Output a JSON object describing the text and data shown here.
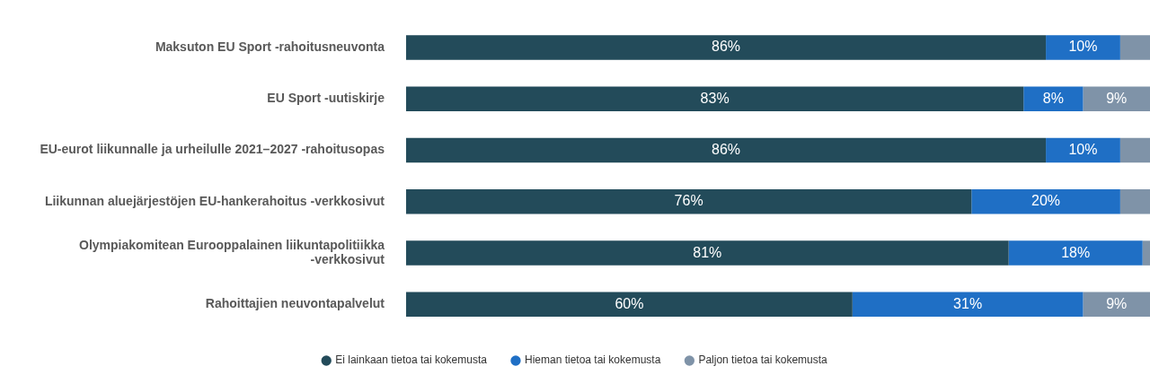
{
  "chart_data": {
    "type": "bar",
    "orientation": "horizontal",
    "stacked": true,
    "xlim": [
      0,
      100
    ],
    "tick_labels": "y",
    "legend": "bottom",
    "marker": "circle",
    "categories": [
      "Maksuton EU Sport -rahoitusneuvonta",
      "EU Sport -uutiskirje",
      "EU-eurot liikunnalle ja urheilulle 2021–2027 -rahoitusopas",
      "Liikunnan aluejärjestöjen EU-hankerahoitus -verkkosivut",
      "Olympiakomitean Eurooppalainen liikuntapolitiikka -verkkosivut",
      "Rahoittajien neuvontapalvelut"
    ],
    "series": [
      {
        "name": "Ei lainkaan tietoa tai kokemusta",
        "color": "#234b5a",
        "values": [
          86,
          83,
          86,
          76,
          81,
          60
        ],
        "value_labels": [
          "86%",
          "83%",
          "86%",
          "76%",
          "81%",
          "60%"
        ]
      },
      {
        "name": "Hieman tietoa tai kokemusta",
        "color": "#1f6fc5",
        "values": [
          10,
          8,
          10,
          20,
          18,
          31
        ],
        "value_labels": [
          "10%",
          "8%",
          "10%",
          "20%",
          "18%",
          "31%"
        ]
      },
      {
        "name": "Paljon tietoa tai kokemusta",
        "color": "#7f93a8",
        "values": [
          4,
          9,
          4,
          4,
          1,
          9
        ],
        "value_labels": [
          null,
          "9%",
          null,
          null,
          null,
          "9%"
        ]
      }
    ]
  }
}
